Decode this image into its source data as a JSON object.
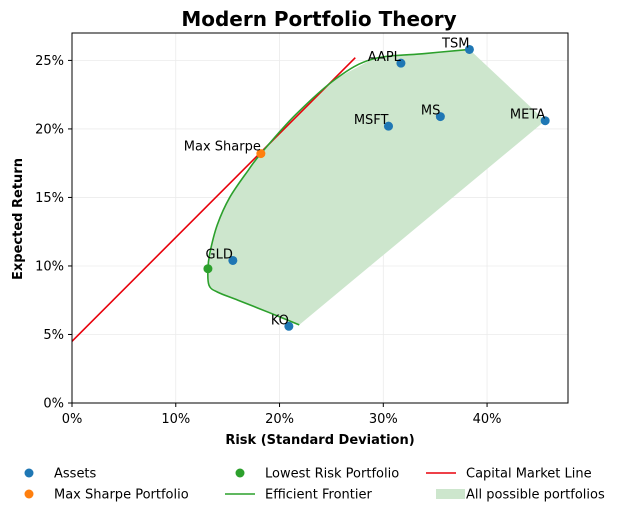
{
  "chart_data": {
    "type": "scatter",
    "title": "Modern Portfolio Theory",
    "xlabel": "Risk (Standard Deviation)",
    "ylabel": "Expected Return",
    "xlim": [
      0,
      0.478
    ],
    "ylim": [
      0,
      0.27
    ],
    "x_ticks": [
      0,
      0.1,
      0.2,
      0.3,
      0.4
    ],
    "x_tick_labels": [
      "0%",
      "10%",
      "20%",
      "30%",
      "40%"
    ],
    "y_ticks": [
      0,
      0.05,
      0.1,
      0.15,
      0.2,
      0.25
    ],
    "y_tick_labels": [
      "0%",
      "5%",
      "10%",
      "15%",
      "20%",
      "25%"
    ],
    "grid": true,
    "legend_position": "bottom",
    "colors": {
      "assets": "#1f77b4",
      "max_sharpe": "#ff7f0e",
      "min_risk": "#2ca02c",
      "frontier": "#2ca02c",
      "cml": "#e8000b",
      "region": "#cde6cd"
    },
    "assets": [
      {
        "label": "AAPL",
        "x": 0.317,
        "y": 0.248
      },
      {
        "label": "TSM",
        "x": 0.383,
        "y": 0.258
      },
      {
        "label": "MSFT",
        "x": 0.305,
        "y": 0.202
      },
      {
        "label": "MS",
        "x": 0.355,
        "y": 0.209
      },
      {
        "label": "META",
        "x": 0.456,
        "y": 0.206
      },
      {
        "label": "GLD",
        "x": 0.155,
        "y": 0.104
      },
      {
        "label": "KO",
        "x": 0.209,
        "y": 0.056
      }
    ],
    "max_sharpe_point": {
      "label": "Max Sharpe",
      "x": 0.182,
      "y": 0.182
    },
    "min_risk_point": {
      "x": 0.131,
      "y": 0.098
    },
    "efficient_frontier": [
      {
        "x": 0.219,
        "y": 0.057
      },
      {
        "x": 0.19,
        "y": 0.066
      },
      {
        "x": 0.16,
        "y": 0.075
      },
      {
        "x": 0.14,
        "y": 0.081
      },
      {
        "x": 0.132,
        "y": 0.086
      },
      {
        "x": 0.131,
        "y": 0.098
      },
      {
        "x": 0.133,
        "y": 0.11
      },
      {
        "x": 0.14,
        "y": 0.13
      },
      {
        "x": 0.152,
        "y": 0.15
      },
      {
        "x": 0.17,
        "y": 0.17
      },
      {
        "x": 0.182,
        "y": 0.182
      },
      {
        "x": 0.215,
        "y": 0.21
      },
      {
        "x": 0.255,
        "y": 0.237
      },
      {
        "x": 0.29,
        "y": 0.251
      },
      {
        "x": 0.34,
        "y": 0.255
      },
      {
        "x": 0.383,
        "y": 0.258
      }
    ],
    "feasible_region_upper_right": [
      {
        "x": 0.383,
        "y": 0.258
      },
      {
        "x": 0.456,
        "y": 0.206
      },
      {
        "x": 0.219,
        "y": 0.057
      }
    ],
    "capital_market_line": [
      {
        "x": 0.0,
        "y": 0.045
      },
      {
        "x": 0.273,
        "y": 0.252
      }
    ],
    "legend": [
      {
        "label": "Assets",
        "marker": "dot",
        "color_key": "assets"
      },
      {
        "label": "Lowest Risk Portfolio",
        "marker": "dot",
        "color_key": "min_risk"
      },
      {
        "label": "Capital Market Line",
        "marker": "line",
        "color_key": "cml"
      },
      {
        "label": "Max Sharpe Portfolio",
        "marker": "dot",
        "color_key": "max_sharpe"
      },
      {
        "label": "Efficient Frontier",
        "marker": "line",
        "color_key": "frontier"
      },
      {
        "label": "All possible portfolios",
        "marker": "patch",
        "color_key": "region"
      }
    ]
  }
}
